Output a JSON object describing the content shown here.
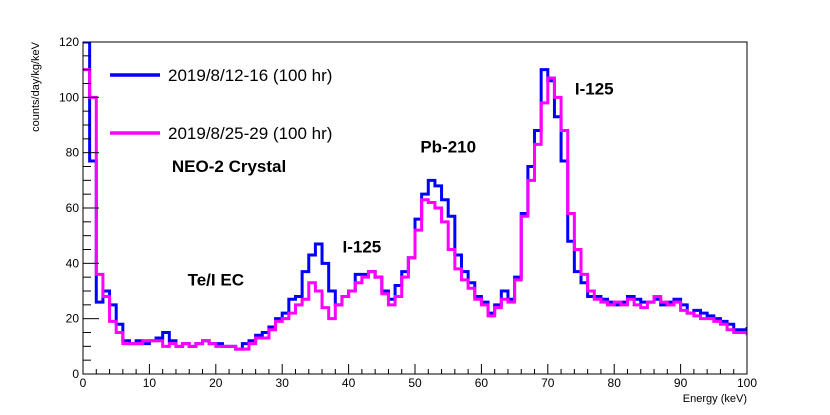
{
  "chart_data": {
    "type": "line",
    "xlabel": "Energy (keV)",
    "ylabel": "counts/day/kg/keV",
    "xlim": [
      0,
      100
    ],
    "ylim": [
      0,
      120
    ],
    "x_ticks": [
      0,
      10,
      20,
      30,
      40,
      50,
      60,
      70,
      80,
      90,
      100
    ],
    "y_ticks": [
      0,
      20,
      40,
      60,
      80,
      100,
      120
    ],
    "grid": false,
    "legend_position": "top-left",
    "bin_edges": [
      0,
      1,
      2,
      3,
      4,
      5,
      6,
      7,
      8,
      9,
      10,
      11,
      12,
      13,
      14,
      15,
      16,
      17,
      18,
      19,
      20,
      21,
      22,
      23,
      24,
      25,
      26,
      27,
      28,
      29,
      30,
      31,
      32,
      33,
      34,
      35,
      36,
      37,
      38,
      39,
      40,
      41,
      42,
      43,
      44,
      45,
      46,
      47,
      48,
      49,
      50,
      51,
      52,
      53,
      54,
      55,
      56,
      57,
      58,
      59,
      60,
      61,
      62,
      63,
      64,
      65,
      66,
      67,
      68,
      69,
      70,
      71,
      72,
      73,
      74,
      75,
      76,
      77,
      78,
      79,
      80,
      81,
      82,
      83,
      84,
      85,
      86,
      87,
      88,
      89,
      90,
      91,
      92,
      93,
      94,
      95,
      96,
      97,
      98,
      99,
      100
    ],
    "series": [
      {
        "name": "2019/8/12-16 (100 hr)",
        "color": "#0000ff",
        "values": [
          120,
          77,
          26,
          30,
          25,
          18,
          12,
          11,
          12,
          11,
          12,
          13,
          15,
          12,
          10,
          11,
          10,
          11,
          12,
          11,
          11,
          10,
          10,
          9,
          11,
          12,
          14,
          15,
          17,
          20,
          22,
          27,
          28,
          37,
          43,
          47,
          40,
          30,
          25,
          28,
          30,
          36,
          36,
          37,
          35,
          30,
          27,
          32,
          37,
          42,
          56,
          65,
          70,
          68,
          63,
          57,
          43,
          37,
          33,
          28,
          26,
          22,
          25,
          30,
          27,
          35,
          58,
          75,
          88,
          110,
          106,
          93,
          77,
          48,
          37,
          33,
          28,
          28,
          27,
          26,
          25,
          26,
          28,
          27,
          26,
          26,
          27,
          25,
          26,
          27,
          25,
          22,
          23,
          22,
          21,
          20,
          19,
          18,
          16,
          16,
          17
        ]
      },
      {
        "name": "2019/8/25-29 (100 hr)",
        "color": "#ff00ff",
        "values": [
          110,
          100,
          36,
          28,
          19,
          15,
          11,
          11,
          11,
          12,
          12,
          12,
          10,
          11,
          10,
          11,
          10,
          11,
          12,
          11,
          10,
          10,
          10,
          9,
          9,
          11,
          13,
          13,
          16,
          19,
          20,
          22,
          25,
          27,
          33,
          30,
          24,
          20,
          25,
          28,
          30,
          33,
          35,
          37,
          35,
          29,
          25,
          28,
          35,
          42,
          52,
          63,
          62,
          60,
          55,
          45,
          38,
          34,
          31,
          27,
          25,
          21,
          24,
          27,
          26,
          34,
          57,
          70,
          83,
          98,
          107,
          100,
          88,
          58,
          45,
          36,
          30,
          27,
          26,
          25,
          26,
          25,
          27,
          25,
          24,
          26,
          28,
          26,
          25,
          26,
          23,
          22,
          21,
          20,
          20,
          19,
          18,
          16,
          15,
          15,
          14
        ]
      }
    ],
    "annotations": [
      {
        "text": "NEO-2 Crystal",
        "x": 22,
        "y": 73
      },
      {
        "text": "Te/I EC",
        "x": 20,
        "y": 32
      },
      {
        "text": "I-125",
        "x": 42,
        "y": 44
      },
      {
        "text": "Pb-210",
        "x": 55,
        "y": 80
      },
      {
        "text": "I-125",
        "x": 77,
        "y": 101
      }
    ]
  }
}
